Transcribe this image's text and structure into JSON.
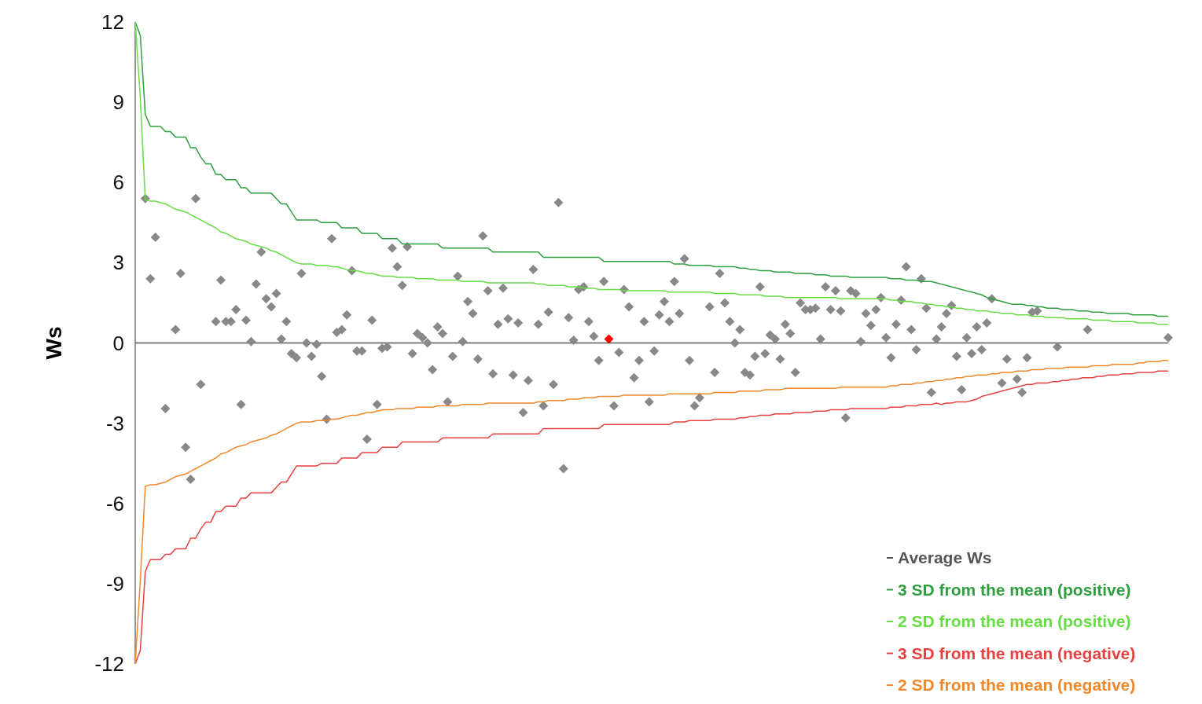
{
  "chart_data": {
    "type": "scatter",
    "ylabel": "Ws",
    "ylim": [
      -12,
      12
    ],
    "yticks": [
      12,
      9,
      6,
      3,
      0,
      -3,
      -6,
      -9,
      -12
    ],
    "tick_labels": "y",
    "legend": "bottom right",
    "categories": [
      null,
      null,
      null,
      null,
      null,
      null,
      null,
      null,
      null,
      null,
      null,
      null,
      null,
      null,
      null,
      null,
      null,
      null,
      null,
      null,
      null,
      null,
      null,
      null,
      null,
      null,
      null,
      null,
      null,
      null,
      null,
      null,
      null,
      null,
      null,
      null,
      null,
      null,
      null,
      null,
      null,
      null,
      null,
      null,
      null,
      null,
      null,
      null,
      null,
      null,
      null,
      null,
      null,
      null,
      null,
      null,
      null,
      null,
      null,
      null,
      null,
      null,
      null,
      null,
      null,
      null,
      null,
      null,
      null,
      null,
      null,
      null,
      null,
      null,
      null,
      null,
      null,
      null,
      null,
      null,
      null,
      null,
      null,
      null,
      null,
      null,
      null,
      null,
      null,
      null,
      null,
      null,
      null,
      null,
      null,
      null,
      null,
      null,
      null,
      null,
      null,
      null,
      null,
      null,
      null,
      null,
      null,
      null,
      null,
      null,
      null,
      null,
      null,
      null,
      null,
      null,
      null,
      null,
      null,
      null,
      null,
      null,
      null,
      null,
      null,
      null,
      null,
      null,
      null,
      null,
      null,
      null,
      null,
      null,
      null,
      null,
      null,
      null,
      null,
      null,
      null,
      null,
      null,
      null,
      null,
      null,
      null,
      null,
      null,
      null,
      null,
      null,
      null,
      null,
      null,
      null,
      null,
      null,
      null,
      null,
      null,
      null,
      null,
      null,
      null,
      null,
      null,
      null,
      null,
      null,
      null,
      null,
      null,
      null,
      null,
      null,
      null,
      null,
      null,
      null,
      null,
      null,
      null,
      null,
      null,
      null,
      null,
      null,
      null,
      null,
      null,
      null,
      null,
      null,
      null,
      null,
      null,
      null,
      null,
      null,
      null,
      null,
      null,
      null,
      null,
      null
    ],
    "ref_lines": [
      {
        "axis": "y",
        "value": 0,
        "label": "Average Ws",
        "color": "#555555"
      }
    ],
    "series": [
      {
        "color": "#888888",
        "marker": "diamond",
        "values": [
          null,
          null,
          5.4,
          2.4,
          3.95,
          null,
          -2.45,
          null,
          0.5,
          2.6,
          -3.9,
          -5.1,
          5.4,
          -1.55,
          null,
          null,
          0.8,
          2.35,
          0.8,
          0.8,
          1.25,
          -2.3,
          0.85,
          0.05,
          2.2,
          3.4,
          1.65,
          1.35,
          1.85,
          0.15,
          0.8,
          -0.4,
          -0.55,
          2.6,
          0,
          -0.5,
          -0.05,
          -1.25,
          -2.85,
          3.9,
          0.4,
          0.5,
          1.05,
          2.7,
          -0.3,
          -0.3,
          -3.6,
          0.85,
          -2.3,
          -0.2,
          -0.15,
          3.55,
          2.85,
          2.15,
          3.6,
          -0.4,
          0.35,
          0.2,
          0,
          -1,
          0.6,
          0.35,
          -2.2,
          -0.5,
          2.5,
          0.05,
          1.55,
          1.1,
          -0.6,
          4,
          1.95,
          -1.15,
          0.7,
          2.05,
          0.9,
          -1.2,
          0.75,
          -2.6,
          -1.4,
          2.75,
          0.7,
          -2.35,
          1.15,
          -1.55,
          5.25,
          -4.7,
          0.95,
          0.1,
          2,
          2.1,
          0.8,
          0.25,
          -0.65,
          2.3,
          null,
          -2.35,
          -0.35,
          2,
          1.35,
          -1.3,
          -0.65,
          0.8,
          -2.2,
          -0.3,
          1.05,
          1.55,
          0.8,
          2.3,
          1.1,
          3.15,
          -0.65,
          -2.35,
          -2.05,
          null,
          1.35,
          -1.1,
          2.6,
          1.5,
          0.8,
          0,
          0.5,
          -1.1,
          -1.2,
          -0.5,
          2.1,
          -0.4,
          0.3,
          0.15,
          -0.6,
          0.7,
          0.35,
          -1.1,
          1.5,
          1.25,
          1.25,
          1.3,
          0.15,
          2.1,
          1.25,
          1.95,
          1.2,
          -2.8,
          1.95,
          1.85,
          0.05,
          1.1,
          0.65,
          1.25,
          1.7,
          0.2,
          -0.55,
          0.7,
          1.6,
          2.85,
          0.5,
          -0.25,
          2.4,
          1.3,
          -1.85,
          0.15,
          0.6,
          1.1,
          1.4,
          -0.5,
          -1.75,
          0.2,
          -0.4,
          0.6,
          -0.25,
          0.75,
          1.65,
          null,
          -1.5,
          -0.6,
          null,
          -1.35,
          -1.85,
          -0.55,
          1.15,
          1.2,
          null,
          null,
          null,
          -0.15,
          null,
          null,
          null,
          null,
          null,
          0.5,
          null,
          null,
          null,
          null,
          null,
          null,
          null,
          null,
          null,
          null,
          null,
          null,
          null,
          null,
          null,
          0.2
        ]
      },
      {
        "color": "#ff0000",
        "marker": "diamond",
        "values": [
          null,
          null,
          null,
          null,
          null,
          null,
          null,
          null,
          null,
          null,
          null,
          null,
          null,
          null,
          null,
          null,
          null,
          null,
          null,
          null,
          null,
          null,
          null,
          null,
          null,
          null,
          null,
          null,
          null,
          null,
          null,
          null,
          null,
          null,
          null,
          null,
          null,
          null,
          null,
          null,
          null,
          null,
          null,
          null,
          null,
          null,
          null,
          null,
          null,
          null,
          null,
          null,
          null,
          null,
          null,
          null,
          null,
          null,
          null,
          null,
          null,
          null,
          null,
          null,
          null,
          null,
          null,
          null,
          null,
          null,
          null,
          null,
          null,
          null,
          null,
          null,
          null,
          null,
          null,
          null,
          null,
          null,
          null,
          null,
          null,
          null,
          null,
          null,
          null,
          null,
          null,
          null,
          null,
          null,
          0.15,
          null,
          null,
          null,
          null,
          null,
          null,
          null,
          null,
          null,
          null,
          null,
          null,
          null,
          null,
          null,
          null,
          null,
          null,
          null,
          null,
          null,
          null,
          null,
          null,
          null,
          null,
          null,
          null,
          null,
          null,
          null,
          null,
          null,
          null,
          null,
          null,
          null,
          null,
          null,
          null,
          null,
          null,
          null,
          null,
          null,
          null,
          null,
          null,
          null,
          null,
          null,
          null,
          null,
          null,
          null,
          null,
          null,
          null,
          null,
          null,
          null,
          null,
          null,
          null,
          null,
          null,
          null,
          null,
          null,
          null,
          null,
          null,
          null,
          null,
          null,
          null,
          null,
          null,
          null,
          null,
          null,
          null,
          null,
          null,
          null,
          null,
          null,
          null,
          null,
          null,
          null,
          null,
          null,
          null,
          null,
          null,
          null,
          null,
          null,
          null,
          null,
          null,
          null,
          null,
          null,
          null,
          null,
          null,
          null,
          null,
          null
        ]
      },
      {
        "type": "line",
        "name": "3 SD from the mean (positive)",
        "color": "#2e9e3e",
        "values": [
          12,
          11.5,
          8.55,
          8.1,
          8.1,
          8.1,
          7.9,
          7.9,
          7.7,
          7.7,
          7.7,
          7.3,
          7.3,
          6.95,
          6.7,
          6.7,
          6.3,
          6.3,
          6.1,
          6.1,
          6.1,
          5.8,
          5.8,
          5.6,
          5.6,
          5.6,
          5.6,
          5.6,
          5.4,
          5.2,
          5.2,
          4.9,
          4.6,
          4.6,
          4.6,
          4.6,
          4.6,
          4.5,
          4.5,
          4.5,
          4.5,
          4.3,
          4.3,
          4.3,
          4.3,
          4.1,
          4.1,
          4.1,
          4.1,
          3.9,
          3.9,
          3.9,
          3.9,
          3.7,
          3.7,
          3.7,
          3.7,
          3.7,
          3.7,
          3.7,
          3.7,
          3.55,
          3.55,
          3.55,
          3.55,
          3.55,
          3.55,
          3.55,
          3.55,
          3.55,
          3.55,
          3.4,
          3.4,
          3.4,
          3.4,
          3.4,
          3.4,
          3.4,
          3.4,
          3.4,
          3.4,
          3.2,
          3.2,
          3.2,
          3.2,
          3.2,
          3.2,
          3.2,
          3.2,
          3.2,
          3.2,
          3.2,
          3.2,
          3.05,
          3.05,
          3.05,
          3.05,
          3.05,
          3.05,
          3.05,
          3.05,
          3.05,
          3.05,
          3.05,
          3.05,
          3.05,
          3.05,
          2.95,
          2.95,
          2.95,
          2.9,
          2.9,
          2.9,
          2.9,
          2.9,
          2.85,
          2.85,
          2.85,
          2.85,
          2.85,
          2.8,
          2.8,
          2.75,
          2.75,
          2.7,
          2.7,
          2.7,
          2.65,
          2.65,
          2.65,
          2.65,
          2.6,
          2.6,
          2.6,
          2.6,
          2.55,
          2.55,
          2.55,
          2.5,
          2.5,
          2.5,
          2.5,
          2.45,
          2.45,
          2.45,
          2.45,
          2.45,
          2.45,
          2.45,
          2.45,
          2.4,
          2.4,
          2.4,
          2.35,
          2.35,
          2.35,
          2.3,
          2.3,
          2.3,
          2.25,
          2.2,
          2.15,
          2.1,
          2.05,
          2,
          1.95,
          1.9,
          1.85,
          1.8,
          1.7,
          1.65,
          1.6,
          1.55,
          1.5,
          1.45,
          1.45,
          1.45,
          1.4,
          1.4,
          1.35,
          1.35,
          1.3,
          1.3,
          1.3,
          1.25,
          1.25,
          1.25,
          1.2,
          1.2,
          1.2,
          1.15,
          1.15,
          1.15,
          1.1,
          1.1,
          1.1,
          1.1,
          1.1,
          1.05,
          1.05,
          1.05,
          1.05,
          1.05,
          1,
          1,
          1
        ]
      },
      {
        "type": "line",
        "name": "2 SD from the mean (positive)",
        "color": "#66dd44",
        "values": [
          12,
          9.2,
          5.35,
          5.3,
          5.3,
          5.25,
          5.2,
          5.1,
          5,
          4.95,
          4.9,
          4.8,
          4.7,
          4.6,
          4.5,
          4.4,
          4.3,
          4.15,
          4.1,
          4,
          3.9,
          3.85,
          3.8,
          3.7,
          3.65,
          3.6,
          3.55,
          3.45,
          3.4,
          3.3,
          3.2,
          3.1,
          3,
          2.95,
          2.95,
          2.95,
          2.9,
          2.9,
          2.9,
          2.85,
          2.85,
          2.8,
          2.75,
          2.7,
          2.7,
          2.65,
          2.6,
          2.6,
          2.55,
          2.5,
          2.5,
          2.5,
          2.45,
          2.45,
          2.45,
          2.45,
          2.4,
          2.4,
          2.4,
          2.4,
          2.35,
          2.35,
          2.35,
          2.35,
          2.35,
          2.3,
          2.3,
          2.3,
          2.3,
          2.3,
          2.25,
          2.25,
          2.25,
          2.25,
          2.25,
          2.25,
          2.25,
          2.25,
          2.25,
          2.25,
          2.2,
          2.2,
          2.15,
          2.15,
          2.15,
          2.15,
          2.1,
          2.1,
          2.1,
          2.05,
          2.05,
          2.05,
          2,
          2,
          2,
          2,
          2,
          1.95,
          1.95,
          1.95,
          1.95,
          1.95,
          1.95,
          1.95,
          1.95,
          1.95,
          1.9,
          1.9,
          1.9,
          1.9,
          1.9,
          1.9,
          1.9,
          1.9,
          1.9,
          1.85,
          1.85,
          1.85,
          1.85,
          1.85,
          1.8,
          1.8,
          1.8,
          1.8,
          1.8,
          1.75,
          1.75,
          1.75,
          1.75,
          1.7,
          1.7,
          1.7,
          1.7,
          1.7,
          1.7,
          1.7,
          1.7,
          1.7,
          1.7,
          1.7,
          1.65,
          1.65,
          1.65,
          1.65,
          1.65,
          1.65,
          1.65,
          1.65,
          1.65,
          1.65,
          1.6,
          1.6,
          1.55,
          1.55,
          1.55,
          1.5,
          1.5,
          1.45,
          1.45,
          1.4,
          1.4,
          1.35,
          1.35,
          1.3,
          1.3,
          1.25,
          1.25,
          1.2,
          1.2,
          1.2,
          1.15,
          1.15,
          1.1,
          1.1,
          1.1,
          1.05,
          1.05,
          1.05,
          1,
          1,
          1,
          0.95,
          0.95,
          0.95,
          0.95,
          0.9,
          0.9,
          0.9,
          0.9,
          0.9,
          0.85,
          0.85,
          0.85,
          0.85,
          0.8,
          0.8,
          0.8,
          0.8,
          0.8,
          0.75,
          0.75,
          0.75,
          0.75,
          0.7,
          0.7,
          0.7
        ]
      },
      {
        "type": "line",
        "name": "3 SD from the mean (negative)",
        "color": "#e84040",
        "values": [
          -12,
          -11.5,
          -8.55,
          -8.1,
          -8.1,
          -8.1,
          -7.9,
          -7.9,
          -7.7,
          -7.7,
          -7.7,
          -7.3,
          -7.3,
          -6.95,
          -6.7,
          -6.7,
          -6.3,
          -6.3,
          -6.1,
          -6.1,
          -6.1,
          -5.8,
          -5.8,
          -5.6,
          -5.6,
          -5.6,
          -5.6,
          -5.6,
          -5.4,
          -5.2,
          -5.2,
          -4.9,
          -4.6,
          -4.6,
          -4.6,
          -4.6,
          -4.6,
          -4.5,
          -4.5,
          -4.5,
          -4.5,
          -4.3,
          -4.3,
          -4.3,
          -4.3,
          -4.1,
          -4.1,
          -4.1,
          -4.1,
          -3.9,
          -3.9,
          -3.9,
          -3.9,
          -3.7,
          -3.7,
          -3.7,
          -3.7,
          -3.7,
          -3.7,
          -3.7,
          -3.7,
          -3.55,
          -3.55,
          -3.55,
          -3.55,
          -3.55,
          -3.55,
          -3.55,
          -3.55,
          -3.55,
          -3.55,
          -3.4,
          -3.4,
          -3.4,
          -3.4,
          -3.4,
          -3.4,
          -3.4,
          -3.4,
          -3.4,
          -3.4,
          -3.2,
          -3.2,
          -3.2,
          -3.2,
          -3.2,
          -3.2,
          -3.2,
          -3.2,
          -3.2,
          -3.2,
          -3.2,
          -3.2,
          -3.05,
          -3.05,
          -3.05,
          -3.05,
          -3.05,
          -3.05,
          -3.05,
          -3.05,
          -3.05,
          -3.05,
          -3.05,
          -3.05,
          -3.05,
          -3.05,
          -2.95,
          -2.95,
          -2.95,
          -2.9,
          -2.9,
          -2.9,
          -2.9,
          -2.9,
          -2.85,
          -2.85,
          -2.85,
          -2.85,
          -2.85,
          -2.8,
          -2.8,
          -2.75,
          -2.75,
          -2.7,
          -2.7,
          -2.7,
          -2.65,
          -2.65,
          -2.65,
          -2.65,
          -2.6,
          -2.6,
          -2.6,
          -2.6,
          -2.55,
          -2.55,
          -2.55,
          -2.5,
          -2.5,
          -2.5,
          -2.5,
          -2.45,
          -2.45,
          -2.45,
          -2.45,
          -2.45,
          -2.45,
          -2.45,
          -2.45,
          -2.4,
          -2.4,
          -2.4,
          -2.35,
          -2.35,
          -2.35,
          -2.3,
          -2.3,
          -2.3,
          -2.25,
          -2.3,
          -2.25,
          -2.25,
          -2.2,
          -2.2,
          -2.2,
          -2.15,
          -2.1,
          -2,
          -1.95,
          -1.9,
          -1.85,
          -1.8,
          -1.75,
          -1.7,
          -1.65,
          -1.6,
          -1.55,
          -1.55,
          -1.5,
          -1.5,
          -1.5,
          -1.45,
          -1.45,
          -1.4,
          -1.4,
          -1.35,
          -1.35,
          -1.3,
          -1.3,
          -1.3,
          -1.25,
          -1.25,
          -1.2,
          -1.2,
          -1.2,
          -1.15,
          -1.15,
          -1.15,
          -1.1,
          -1.1,
          -1.1,
          -1.1,
          -1.05,
          -1.05,
          -1.05
        ]
      },
      {
        "type": "line",
        "name": "2 SD from the mean (negative)",
        "color": "#f0882a",
        "values": [
          -12,
          -8.9,
          -5.35,
          -5.3,
          -5.3,
          -5.25,
          -5.2,
          -5.1,
          -5,
          -4.95,
          -4.9,
          -4.8,
          -4.7,
          -4.6,
          -4.5,
          -4.4,
          -4.3,
          -4.15,
          -4.1,
          -4,
          -3.9,
          -3.85,
          -3.8,
          -3.7,
          -3.65,
          -3.6,
          -3.55,
          -3.45,
          -3.4,
          -3.3,
          -3.2,
          -3.1,
          -3,
          -2.95,
          -2.95,
          -2.95,
          -2.9,
          -2.9,
          -2.9,
          -2.85,
          -2.85,
          -2.8,
          -2.75,
          -2.7,
          -2.7,
          -2.65,
          -2.6,
          -2.6,
          -2.55,
          -2.5,
          -2.5,
          -2.5,
          -2.45,
          -2.45,
          -2.45,
          -2.45,
          -2.4,
          -2.4,
          -2.4,
          -2.4,
          -2.35,
          -2.35,
          -2.35,
          -2.35,
          -2.35,
          -2.3,
          -2.3,
          -2.3,
          -2.3,
          -2.3,
          -2.25,
          -2.25,
          -2.25,
          -2.25,
          -2.25,
          -2.25,
          -2.25,
          -2.25,
          -2.25,
          -2.25,
          -2.2,
          -2.2,
          -2.15,
          -2.15,
          -2.15,
          -2.15,
          -2.1,
          -2.1,
          -2.1,
          -2.05,
          -2.05,
          -2.05,
          -2,
          -2,
          -2,
          -2,
          -2,
          -1.95,
          -1.95,
          -1.95,
          -1.95,
          -1.95,
          -1.95,
          -1.95,
          -1.95,
          -1.95,
          -1.9,
          -1.9,
          -1.9,
          -1.9,
          -1.9,
          -1.9,
          -1.9,
          -1.9,
          -1.9,
          -1.85,
          -1.85,
          -1.85,
          -1.85,
          -1.85,
          -1.8,
          -1.8,
          -1.8,
          -1.8,
          -1.8,
          -1.75,
          -1.75,
          -1.75,
          -1.75,
          -1.7,
          -1.7,
          -1.7,
          -1.7,
          -1.7,
          -1.7,
          -1.7,
          -1.7,
          -1.7,
          -1.7,
          -1.7,
          -1.65,
          -1.65,
          -1.65,
          -1.65,
          -1.65,
          -1.65,
          -1.65,
          -1.65,
          -1.65,
          -1.65,
          -1.6,
          -1.6,
          -1.55,
          -1.55,
          -1.55,
          -1.5,
          -1.5,
          -1.45,
          -1.45,
          -1.4,
          -1.4,
          -1.35,
          -1.35,
          -1.3,
          -1.3,
          -1.25,
          -1.25,
          -1.2,
          -1.2,
          -1.2,
          -1.15,
          -1.15,
          -1.1,
          -1.1,
          -1.1,
          -1.05,
          -1.05,
          -1.05,
          -1,
          -1,
          -1,
          -0.95,
          -0.95,
          -0.95,
          -0.95,
          -0.9,
          -0.9,
          -0.9,
          -0.9,
          -0.9,
          -0.85,
          -0.85,
          -0.85,
          -0.85,
          -0.8,
          -0.8,
          -0.8,
          -0.8,
          -0.8,
          -0.75,
          -0.75,
          -0.7,
          -0.7,
          -0.7,
          -0.65,
          -0.65
        ]
      }
    ]
  }
}
